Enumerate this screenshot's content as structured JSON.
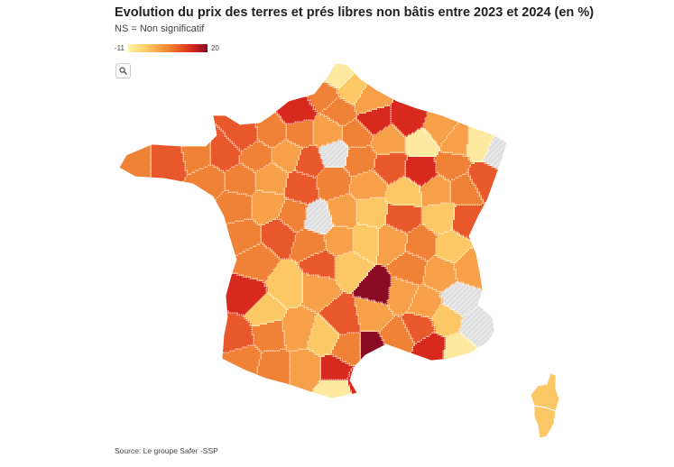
{
  "title": "Evolution du prix des terres et prés libres non bâtis entre 2023 et 2024 (en %)",
  "subtitle": "NS = Non significatif",
  "legend": {
    "min": "-11",
    "max": "20"
  },
  "icons": {
    "search": "search-icon"
  },
  "source": "Source: Le groupe Safer -SSP",
  "colors": {
    "pale": "#fde9a0",
    "light": "#fcc866",
    "mid": "#f6a04a",
    "orange": "#ef8236",
    "deep": "#e8582a",
    "red": "#d8291f",
    "darkred": "#8c0b24",
    "ns": "#e4e4e4",
    "border": "#ffffff"
  }
}
